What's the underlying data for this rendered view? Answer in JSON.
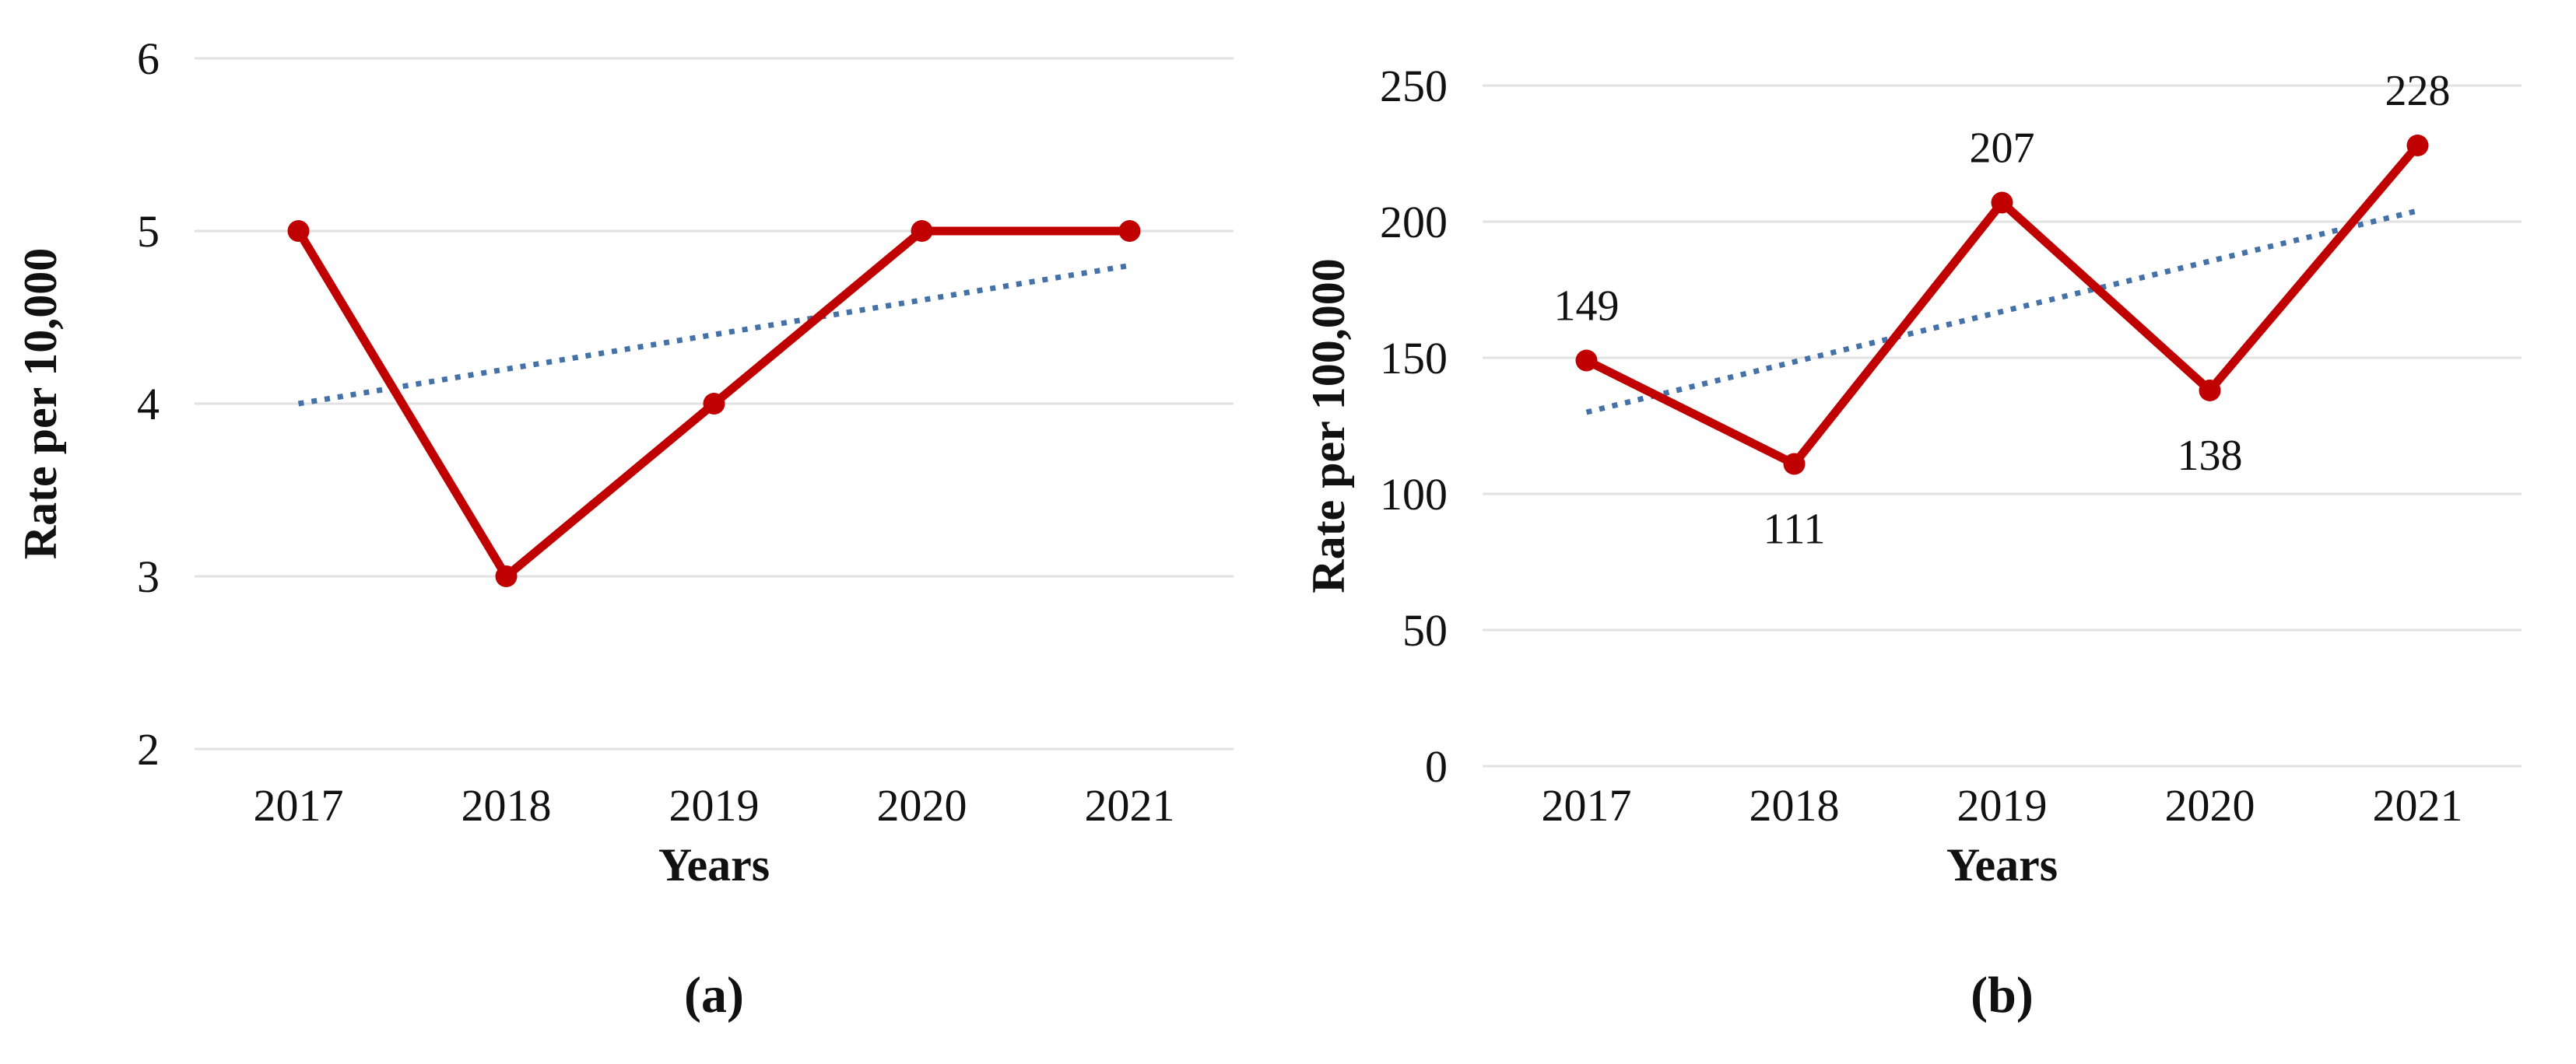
{
  "figure": {
    "background": "#ffffff",
    "grid_color": "#e2e2e2",
    "text_color": "#111111"
  },
  "chart_data": [
    {
      "type": "line",
      "panel": "a",
      "caption": "(a)",
      "title": "",
      "xlabel": "Years",
      "ylabel": "Rate per 10,000",
      "categories": [
        "2017",
        "2018",
        "2019",
        "2020",
        "2021"
      ],
      "series": [
        {
          "name": "rate-per-10000",
          "values": [
            5,
            3,
            4,
            5,
            5
          ],
          "color": "#c00000",
          "marker": "circle"
        }
      ],
      "trendline": {
        "start_value": 4.0,
        "end_value": 4.8,
        "style": "dotted",
        "color": "#4472a8"
      },
      "ylim": [
        2,
        6
      ],
      "yticks": [
        2,
        3,
        4,
        5,
        6
      ],
      "grid": "horizontal",
      "legend": "none",
      "data_labels": false
    },
    {
      "type": "line",
      "panel": "b",
      "caption": "(b)",
      "title": "",
      "xlabel": "Years",
      "ylabel": "Rate per 100,000",
      "categories": [
        "2017",
        "2018",
        "2019",
        "2020",
        "2021"
      ],
      "series": [
        {
          "name": "rate-per-100000",
          "values": [
            149,
            111,
            207,
            138,
            228
          ],
          "color": "#c00000",
          "marker": "circle"
        }
      ],
      "trendline": {
        "start_value": 130,
        "end_value": 204,
        "style": "dotted",
        "color": "#4472a8"
      },
      "ylim": [
        0,
        250
      ],
      "yticks": [
        0,
        50,
        100,
        150,
        200,
        250
      ],
      "grid": "horizontal",
      "legend": "none",
      "data_labels": true,
      "label_placement": [
        "above",
        "below",
        "above",
        "below",
        "above"
      ]
    }
  ]
}
